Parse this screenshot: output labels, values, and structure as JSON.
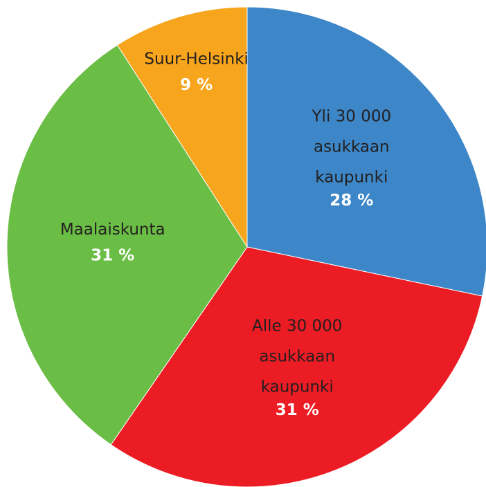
{
  "chart_data": {
    "type": "pie",
    "categories": [
      "Yli 30 000\nasukkaan\nkaupunki",
      "Alle 30 000\nasukkaan\nkaupunki",
      "Maalaiskunta",
      "Suur-Helsinki"
    ],
    "values": [
      28,
      31,
      31,
      9
    ],
    "value_labels": [
      "28 %",
      "31 %",
      "31 %",
      "9 %"
    ],
    "colors": [
      "#3d87c8",
      "#ec1c24",
      "#6abd45",
      "#f7a51c"
    ]
  }
}
